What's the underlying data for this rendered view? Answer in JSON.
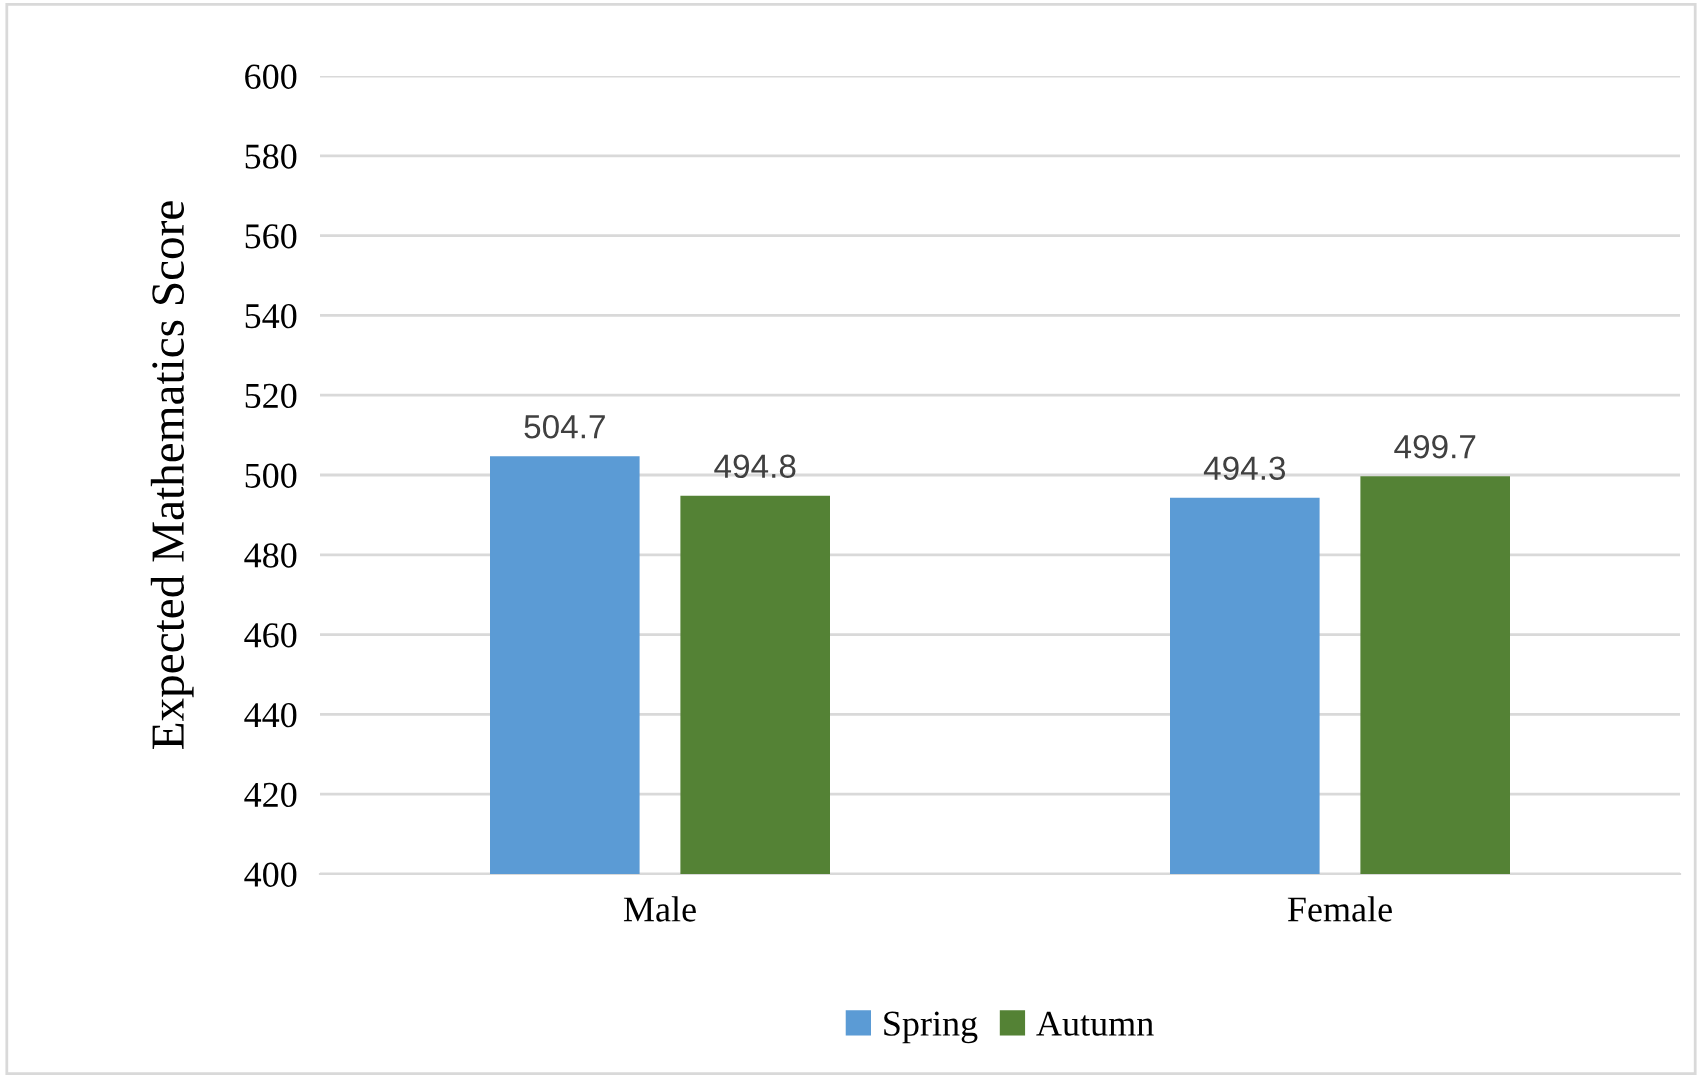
{
  "chart_data": {
    "type": "bar",
    "ylabel": "Expected Mathematics Score",
    "categories": [
      "Male",
      "Female"
    ],
    "series": [
      {
        "name": "Spring",
        "color": "#5b9bd5",
        "values": [
          504.7,
          494.3
        ]
      },
      {
        "name": "Autumn",
        "color": "#548235",
        "values": [
          494.8,
          499.7
        ]
      }
    ],
    "ylim": [
      400,
      600
    ],
    "yticks": [
      400,
      420,
      440,
      460,
      480,
      500,
      520,
      540,
      560,
      580,
      600
    ],
    "grid": "y",
    "legend": "bottom",
    "data_labels": true
  }
}
